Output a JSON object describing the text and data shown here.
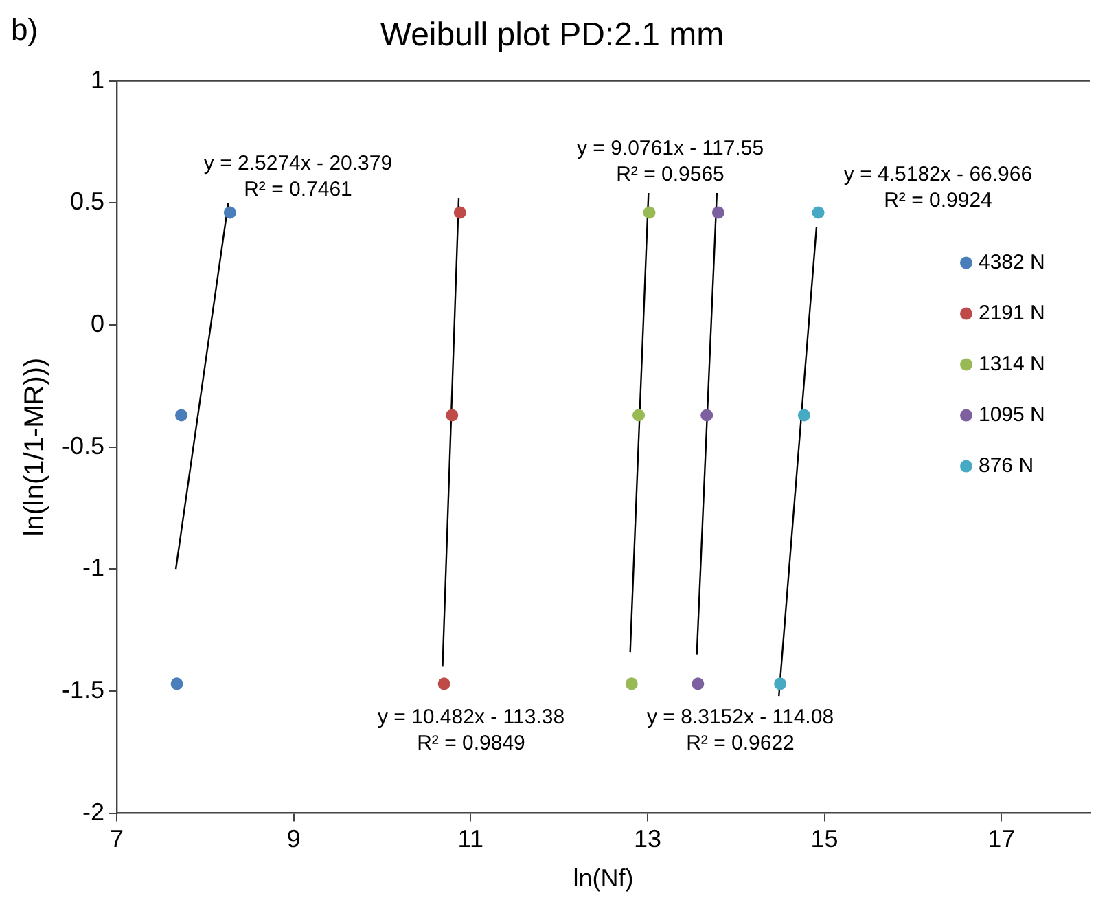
{
  "chart_data": {
    "type": "scatter",
    "title": "Weibull plot PD:2.1 mm",
    "xlabel": "ln(Nf)",
    "ylabel": "ln(ln(1/1-MR)))",
    "xlim": [
      7,
      18
    ],
    "xticks": [
      7,
      9,
      11,
      13,
      15,
      17
    ],
    "ylim": [
      -2,
      1
    ],
    "yticks": [
      -2,
      -1.5,
      -1,
      -0.5,
      0,
      0.5,
      1
    ],
    "grid": false,
    "legend": "right",
    "marker": "circle",
    "series": [
      {
        "name": "4382 N",
        "color": "#4a7ebb",
        "x": [
          8.28,
          7.73,
          7.68
        ],
        "values": [
          0.46,
          -0.37,
          -1.47
        ]
      },
      {
        "name": "2191 N",
        "color": "#be4b48",
        "x": [
          10.88,
          10.79,
          10.7
        ],
        "values": [
          0.46,
          -0.37,
          -1.47
        ]
      },
      {
        "name": "1314 N",
        "color": "#98b954",
        "x": [
          13.02,
          12.9,
          12.82
        ],
        "values": [
          0.46,
          -0.37,
          -1.47
        ]
      },
      {
        "name": "1095 N",
        "color": "#7d60a0",
        "x": [
          13.8,
          13.67,
          13.57
        ],
        "values": [
          0.46,
          -0.37,
          -1.47
        ]
      },
      {
        "name": "876 N",
        "color": "#46aac5",
        "x": [
          14.93,
          14.77,
          14.5
        ],
        "values": [
          0.46,
          -0.37,
          -1.47
        ]
      },
      {
        "type": "line",
        "marker": "none",
        "color": "#000000",
        "x": [
          7.668,
          8.261
        ],
        "values": [
          -1,
          0.5
        ]
      },
      {
        "type": "line",
        "marker": "none",
        "color": "#000000",
        "x": [
          10.683,
          10.866
        ],
        "values": [
          -1.4,
          0.52
        ]
      },
      {
        "type": "line",
        "marker": "none",
        "color": "#000000",
        "x": [
          12.804,
          13.011
        ],
        "values": [
          -1.34,
          0.54
        ]
      },
      {
        "type": "line",
        "marker": "none",
        "color": "#000000",
        "x": [
          13.557,
          13.784
        ],
        "values": [
          -1.35,
          0.54
        ]
      },
      {
        "type": "line",
        "marker": "none",
        "color": "#000000",
        "x": [
          14.485,
          14.91
        ],
        "values": [
          -1.52,
          0.4
        ]
      }
    ],
    "annotations": [
      "b)",
      "y = 2.5274x - 20.379\nR² = 0.7461",
      "y = 10.482x - 113.38\nR² = 0.9849",
      "y = 9.0761x - 117.55\nR² = 0.9565",
      "y = 8.3152x - 114.08\nR² = 0.9622",
      "y = 4.5182x - 66.966\nR² = 0.9924"
    ]
  }
}
